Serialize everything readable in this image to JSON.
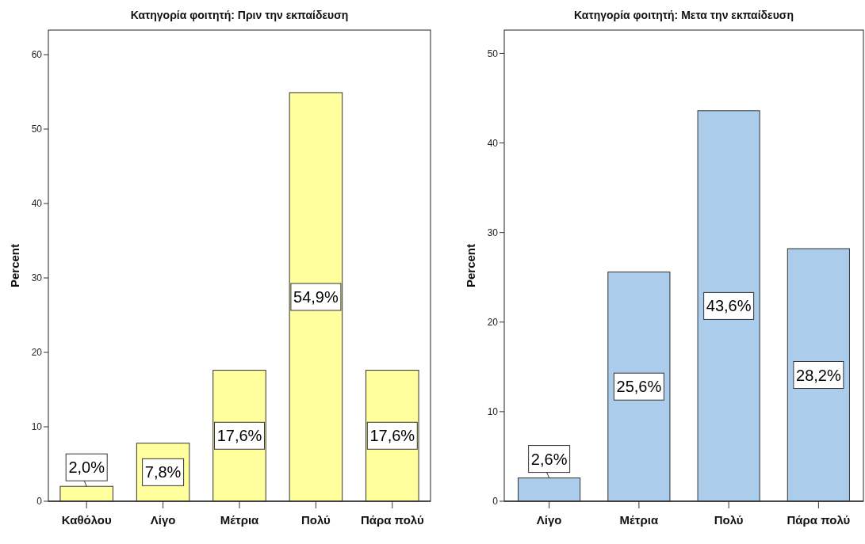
{
  "chart_data": [
    {
      "type": "bar",
      "title": "Κατηγορία φοιτητή: Πριν την εκπαίδευση",
      "ylabel": "Percent",
      "categories": [
        "Καθόλου",
        "Λίγο",
        "Μέτρια",
        "Πολύ",
        "Πάρα πολύ"
      ],
      "values": [
        2.0,
        7.8,
        17.6,
        54.9,
        17.6
      ],
      "value_labels": [
        "2,0%",
        "7,8%",
        "17,6%",
        "54,9%",
        "17,6%"
      ],
      "color": "#ffff9e",
      "ylim": [
        0,
        63.3
      ],
      "yticks": [
        0,
        10,
        20,
        30,
        40,
        50,
        60
      ]
    },
    {
      "type": "bar",
      "title": "Κατηγορία φοιτητή: Μετα την εκπαίδευση",
      "ylabel": "Percent",
      "categories": [
        "Λίγο",
        "Μέτρια",
        "Πολύ",
        "Πάρα πολύ"
      ],
      "values": [
        2.6,
        25.6,
        43.6,
        28.2
      ],
      "value_labels": [
        "2,6%",
        "25,6%",
        "43,6%",
        "28,2%"
      ],
      "color": "#abcdeb",
      "ylim": [
        0,
        52.6
      ],
      "yticks": [
        0,
        10,
        20,
        30,
        40,
        50
      ]
    }
  ]
}
